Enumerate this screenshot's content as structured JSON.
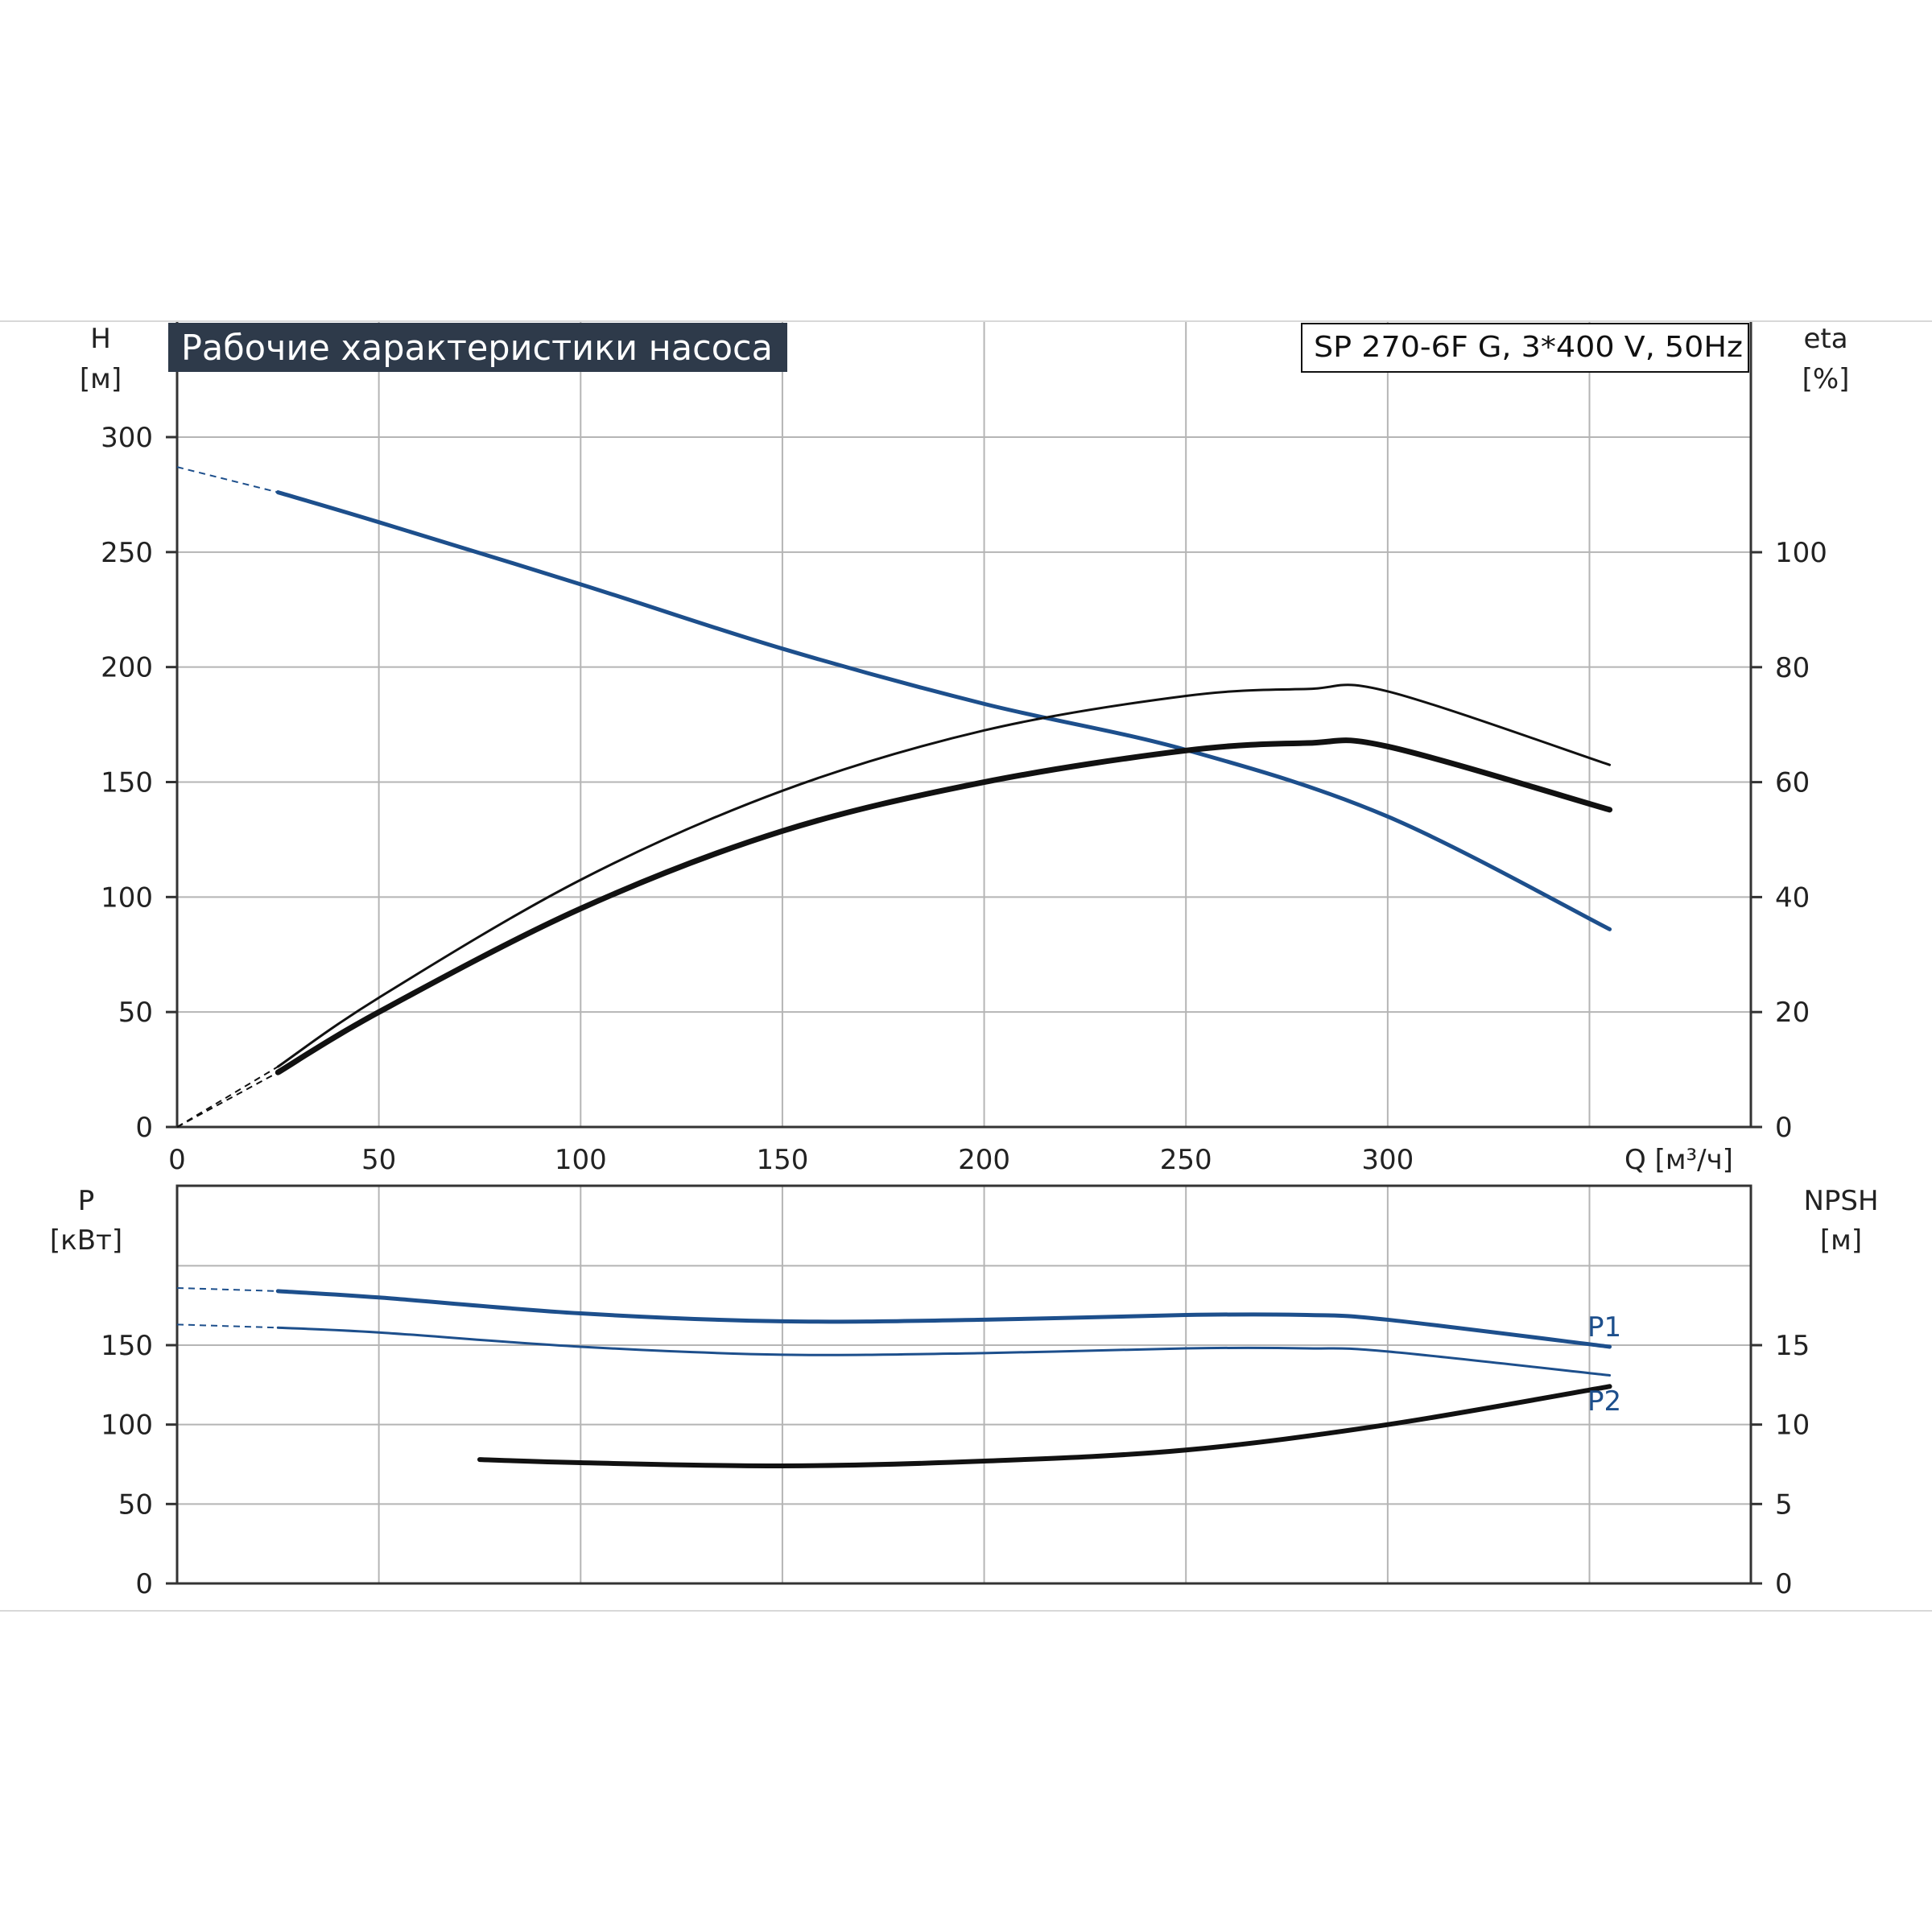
{
  "header": {
    "title": "Рабочие характеристики насоса",
    "model": "SP 270-6F G, 3*400 V, 50Hz"
  },
  "colors": {
    "blue": "#1d4f8c",
    "black": "#111111",
    "grid": "#b5b5b5",
    "title_bg": "#2e3a4a",
    "title_fg": "#ffffff"
  },
  "chart_data": [
    {
      "type": "line",
      "axes": {
        "x": {
          "label": "Q [м³/ч]",
          "ticks": [
            "0",
            "50",
            "100",
            "150",
            "200",
            "250",
            "300"
          ],
          "range": [
            0,
            390
          ]
        },
        "y_left": {
          "label_top": "H",
          "label_unit": "[м]",
          "ticks": [
            "0",
            "50",
            "100",
            "150",
            "200",
            "250",
            "300"
          ],
          "range": [
            0,
            300
          ]
        },
        "y_right": {
          "label_top": "eta",
          "label_unit": "[%]",
          "ticks": [
            "0",
            "20",
            "40",
            "60",
            "80",
            "100"
          ],
          "range": [
            0,
            120
          ]
        }
      },
      "grid": true,
      "series": [
        {
          "axis": "left",
          "color": "blue",
          "width": 5,
          "dashed_x": [
            0,
            25
          ],
          "dashed_y": [
            287,
            276
          ],
          "x": [
            25,
            50,
            100,
            150,
            200,
            250,
            300,
            355
          ],
          "y": [
            276,
            263,
            236,
            208,
            184,
            164,
            135,
            86
          ]
        },
        {
          "axis": "right",
          "color": "black",
          "width": 3,
          "dashed_x": [
            0,
            25
          ],
          "dashed_y": [
            0,
            10.5
          ],
          "x": [
            25,
            50,
            100,
            150,
            200,
            250,
            280,
            300,
            355
          ],
          "y": [
            10.5,
            22.5,
            43,
            58.5,
            69,
            75,
            76.2,
            75.8,
            63
          ]
        },
        {
          "axis": "right",
          "color": "black",
          "width": 7,
          "dashed_x": [
            0,
            25
          ],
          "dashed_y": [
            0,
            9.5
          ],
          "x": [
            25,
            50,
            100,
            150,
            200,
            250,
            280,
            300,
            355
          ],
          "y": [
            9.5,
            20,
            38,
            51.5,
            60,
            65.5,
            66.8,
            66.2,
            55.2
          ]
        }
      ]
    },
    {
      "type": "line",
      "axes": {
        "x": {
          "range": [
            0,
            390
          ]
        },
        "y_left": {
          "label_top": "P",
          "label_unit": "[кВт]",
          "ticks": [
            "0",
            "50",
            "100",
            "150"
          ],
          "range": [
            0,
            200
          ]
        },
        "y_right": {
          "label_top": "NPSH",
          "label_unit": "[м]",
          "ticks": [
            "0",
            "5",
            "10",
            "15"
          ],
          "range": [
            0,
            20
          ]
        }
      },
      "grid": true,
      "series": [
        {
          "name": "P1",
          "axis": "left",
          "color": "blue",
          "width": 5,
          "dashed_x": [
            0,
            25
          ],
          "dashed_y": [
            186,
            184
          ],
          "x": [
            25,
            50,
            100,
            150,
            200,
            250,
            280,
            300,
            355
          ],
          "y": [
            184,
            180,
            170,
            165,
            166,
            169,
            169,
            166,
            149
          ]
        },
        {
          "name": "P2",
          "axis": "left",
          "color": "blue",
          "width": 3,
          "dashed_x": [
            0,
            25
          ],
          "dashed_y": [
            163,
            161
          ],
          "x": [
            25,
            50,
            100,
            150,
            200,
            250,
            280,
            300,
            355
          ],
          "y": [
            161,
            158,
            149,
            144,
            145,
            148,
            148,
            146,
            131
          ]
        },
        {
          "axis": "right",
          "color": "black",
          "width": 6,
          "x": [
            75,
            100,
            150,
            200,
            250,
            300,
            355
          ],
          "y": [
            7.8,
            7.6,
            7.4,
            7.7,
            8.4,
            10.0,
            12.4
          ]
        }
      ]
    }
  ]
}
